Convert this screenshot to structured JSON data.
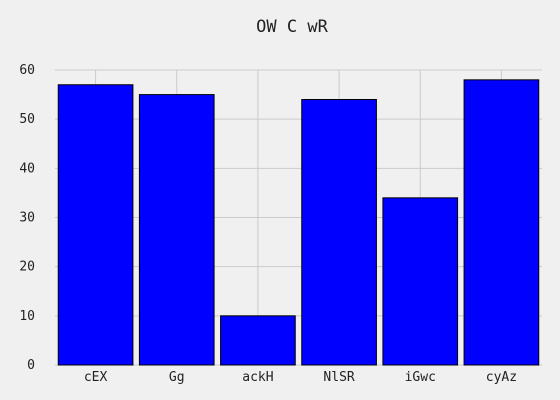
{
  "chart_data": {
    "type": "bar",
    "title": "OW  C wR",
    "xlabel": "",
    "ylabel": "",
    "categories": [
      "cEX",
      "Gg",
      "ackH",
      "NlSR",
      "iGwc",
      "cyAz"
    ],
    "values": [
      57,
      55,
      10,
      54,
      34,
      58
    ],
    "ylim": [
      0,
      60
    ],
    "yticks": [
      0,
      10,
      20,
      30,
      40,
      50,
      60
    ],
    "grid": true,
    "legend": false,
    "bar_color": "#0000ff",
    "background": "#f0f0f0"
  }
}
